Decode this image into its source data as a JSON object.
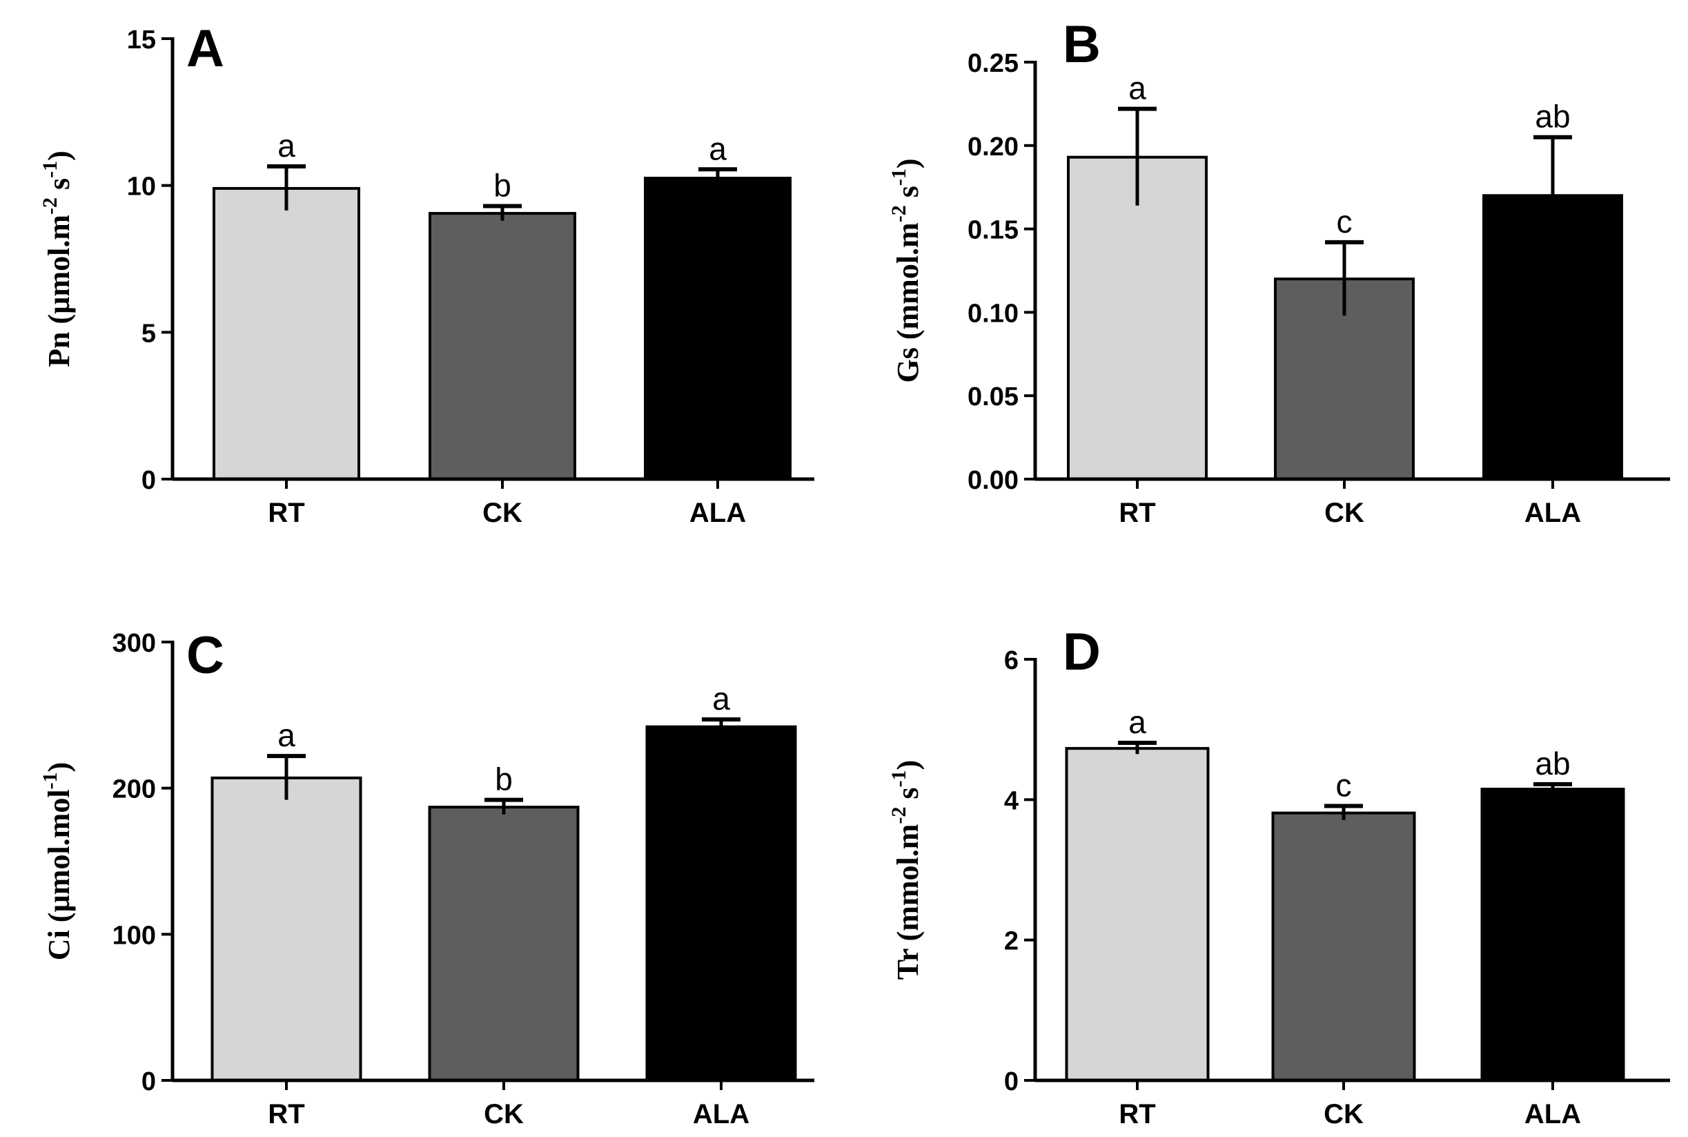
{
  "colors": {
    "RT": "#d6d6d6",
    "CK": "#5e5e5e",
    "ALA": "#000000",
    "axis": "#000000"
  },
  "chart_data": [
    {
      "type": "bar",
      "panel": "A",
      "categories": [
        "RT",
        "CK",
        "ALA"
      ],
      "values": [
        9.9,
        9.05,
        10.25
      ],
      "errors": [
        0.75,
        0.25,
        0.3
      ],
      "letters": [
        "a",
        "b",
        "a"
      ],
      "ylabel": {
        "main": "Pn (µmol.m",
        "sup1": "-2",
        "mid": " s",
        "sup2": "-1",
        "end": ")"
      },
      "ylim": [
        0,
        15
      ],
      "ticks": [
        0,
        5,
        10,
        15
      ],
      "tick_labels": [
        "0",
        "5",
        "10",
        "15"
      ]
    },
    {
      "type": "bar",
      "panel": "B",
      "categories": [
        "RT",
        "CK",
        "ALA"
      ],
      "values": [
        0.193,
        0.12,
        0.17
      ],
      "errors": [
        0.029,
        0.022,
        0.035
      ],
      "letters": [
        "a",
        "c",
        "ab"
      ],
      "ylabel": {
        "main": "Gs (mmol.m",
        "sup1": "-2",
        "mid": " s",
        "sup2": "-1",
        "end": ")"
      },
      "ylim": [
        0,
        0.25
      ],
      "ticks": [
        0,
        0.05,
        0.1,
        0.15,
        0.2,
        0.25
      ],
      "tick_labels": [
        "0.00",
        "0.05",
        "0.10",
        "0.15",
        "0.20",
        "0.25"
      ]
    },
    {
      "type": "bar",
      "panel": "C",
      "categories": [
        "RT",
        "CK",
        "ALA"
      ],
      "values": [
        207,
        187,
        242
      ],
      "errors": [
        15,
        5,
        5
      ],
      "letters": [
        "a",
        "b",
        "a"
      ],
      "ylabel": {
        "main": "Ci (µmol.mol",
        "sup1": "-1",
        "mid": "",
        "sup2": "",
        "end": ")"
      },
      "ylim": [
        0,
        300
      ],
      "ticks": [
        0,
        100,
        200,
        300
      ],
      "tick_labels": [
        "0",
        "100",
        "200",
        "300"
      ]
    },
    {
      "type": "bar",
      "panel": "D",
      "categories": [
        "RT",
        "CK",
        "ALA"
      ],
      "values": [
        4.73,
        3.81,
        4.15
      ],
      "errors": [
        0.08,
        0.1,
        0.07
      ],
      "letters": [
        "a",
        "c",
        "ab"
      ],
      "ylabel": {
        "main": "Tr (mmol.m",
        "sup1": "-2",
        "mid": " s",
        "sup2": "-1",
        "end": ")"
      },
      "ylim": [
        0,
        6
      ],
      "ticks": [
        0,
        2,
        4,
        6
      ],
      "tick_labels": [
        "0",
        "2",
        "4",
        "6"
      ]
    }
  ]
}
